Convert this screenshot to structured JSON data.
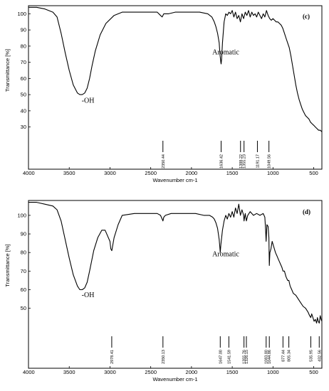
{
  "chart_data": [
    {
      "type": "line",
      "panel_label": "(c)",
      "xlabel": "Wavenumber cm-1",
      "ylabel": "Transmittance [%]",
      "xlim": [
        4000,
        400
      ],
      "ylim": [
        25,
        105
      ],
      "xticks": [
        4000,
        3500,
        3000,
        2500,
        2000,
        1500,
        1000,
        500
      ],
      "yticks": [
        100,
        90,
        80,
        70,
        60,
        50,
        40,
        30
      ],
      "annotations": [
        {
          "text": "-OH",
          "x": 3270,
          "y": 45
        },
        {
          "text": "Aromatic",
          "x": 1580,
          "y": 75
        }
      ],
      "peak_labels": [
        "2350.44",
        "1636.42",
        "1398.22",
        "1355.23",
        "1191.17",
        "1049.56"
      ],
      "peak_positions": [
        2350.44,
        1636.42,
        1398.22,
        1355.23,
        1191.17,
        1049.56
      ],
      "series": [
        {
          "x": [
            4000,
            3900,
            3800,
            3700,
            3650,
            3600,
            3550,
            3500,
            3450,
            3400,
            3370,
            3340,
            3310,
            3280,
            3250,
            3220,
            3180,
            3120,
            3050,
            2950,
            2850,
            2700,
            2550,
            2420,
            2380,
            2360,
            2340,
            2320,
            2280,
            2200,
            2100,
            2000,
            1900,
            1800,
            1750,
            1720,
            1700,
            1680,
            1660,
            1650,
            1640,
            1636,
            1630,
            1620,
            1600,
            1580,
            1560,
            1540,
            1520,
            1500,
            1480,
            1460,
            1440,
            1420,
            1400,
            1380,
            1360,
            1340,
            1320,
            1300,
            1280,
            1260,
            1240,
            1220,
            1200,
            1180,
            1160,
            1140,
            1120,
            1100,
            1080,
            1060,
            1040,
            1020,
            1000,
            980,
            960,
            940,
            920,
            900,
            880,
            860,
            840,
            820,
            800,
            780,
            760,
            740,
            720,
            700,
            680,
            660,
            640,
            620,
            600,
            580,
            560,
            540,
            520,
            500,
            480,
            460,
            440,
            420,
            400
          ],
          "y": [
            104,
            104,
            103,
            101,
            98,
            88,
            76,
            65,
            56,
            51,
            50,
            50,
            51,
            54,
            60,
            68,
            77,
            87,
            94,
            99,
            101,
            101,
            101,
            101,
            99,
            98,
            100,
            100,
            100,
            101,
            101,
            101,
            101,
            100,
            98,
            95,
            92,
            88,
            82,
            75,
            70,
            69,
            72,
            82,
            95,
            100,
            99,
            101,
            100,
            102,
            98,
            101,
            97,
            99,
            95,
            100,
            97,
            101,
            99,
            102,
            98,
            101,
            99,
            100,
            98,
            101,
            99,
            97,
            100,
            98,
            102,
            99,
            97,
            96,
            97,
            96,
            95,
            95,
            94,
            93,
            91,
            88,
            85,
            82,
            79,
            74,
            68,
            62,
            56,
            51,
            47,
            44,
            41,
            39,
            37,
            36,
            35,
            33,
            32,
            31,
            30,
            29,
            28,
            28,
            27
          ]
        }
      ]
    },
    {
      "type": "line",
      "panel_label": "(d)",
      "xlabel": "Wavenumber cm-1",
      "ylabel": "Transmittance [%]",
      "xlim": [
        4000,
        400
      ],
      "ylim": [
        38,
        108
      ],
      "xticks": [
        4000,
        3500,
        3000,
        2500,
        2000,
        1500,
        1000,
        500
      ],
      "yticks": [
        100,
        90,
        80,
        70,
        60,
        50
      ],
      "annotations": [
        {
          "text": "-OH",
          "x": 3270,
          "y": 56
        },
        {
          "text": "Aromatic",
          "x": 1580,
          "y": 78
        }
      ],
      "peak_labels": [
        "2978.41",
        "2350.13",
        "1647.00",
        "1541.59",
        "1355.76",
        "1326.15",
        "1083.80",
        "1044.86",
        "877.44",
        "805.34",
        "535.95",
        "432.56"
      ],
      "peak_positions": [
        2978.41,
        2350.13,
        1647.0,
        1541.59,
        1355.76,
        1326.15,
        1083.8,
        1044.86,
        877.44,
        805.34,
        535.95,
        432.56
      ],
      "series": [
        {
          "x": [
            4000,
            3900,
            3800,
            3700,
            3650,
            3600,
            3550,
            3500,
            3450,
            3400,
            3370,
            3340,
            3310,
            3280,
            3250,
            3200,
            3150,
            3100,
            3060,
            3030,
            3000,
            2990,
            2978,
            2965,
            2950,
            2900,
            2850,
            2700,
            2550,
            2420,
            2380,
            2360,
            2350,
            2340,
            2320,
            2250,
            2150,
            2050,
            1950,
            1850,
            1780,
            1740,
            1720,
            1700,
            1680,
            1660,
            1650,
            1647,
            1640,
            1620,
            1600,
            1580,
            1560,
            1541,
            1520,
            1500,
            1480,
            1460,
            1440,
            1420,
            1400,
            1380,
            1360,
            1355,
            1340,
            1326,
            1310,
            1280,
            1240,
            1200,
            1160,
            1120,
            1100,
            1090,
            1084,
            1075,
            1060,
            1050,
            1045,
            1038,
            1025,
            1010,
            990,
            970,
            950,
            930,
            910,
            890,
            877,
            860,
            840,
            820,
            805,
            790,
            770,
            750,
            720,
            690,
            660,
            630,
            600,
            570,
            550,
            536,
            525,
            510,
            495,
            480,
            465,
            455,
            445,
            432,
            420,
            410,
            400
          ],
          "y": [
            107,
            107,
            106,
            105,
            103,
            97,
            87,
            77,
            68,
            62,
            60,
            60,
            61,
            64,
            70,
            81,
            88,
            92,
            92,
            89,
            86,
            82,
            81,
            84,
            88,
            95,
            100,
            101,
            101,
            101,
            100,
            98,
            97,
            99,
            100,
            101,
            101,
            101,
            101,
            100,
            100,
            99,
            98,
            96,
            93,
            87,
            82,
            80,
            84,
            92,
            97,
            100,
            98,
            101,
            99,
            102,
            99,
            104,
            101,
            106,
            100,
            103,
            100,
            97,
            101,
            97,
            100,
            102,
            100,
            101,
            100,
            101,
            99,
            92,
            86,
            95,
            94,
            88,
            73,
            80,
            82,
            86,
            83,
            80,
            78,
            76,
            74,
            72,
            70,
            70,
            67,
            65,
            65,
            62,
            60,
            58,
            57,
            55,
            53,
            51,
            50,
            48,
            46,
            45,
            47,
            45,
            43,
            44,
            42,
            45,
            43,
            42,
            46,
            44,
            43
          ]
        }
      ]
    }
  ]
}
